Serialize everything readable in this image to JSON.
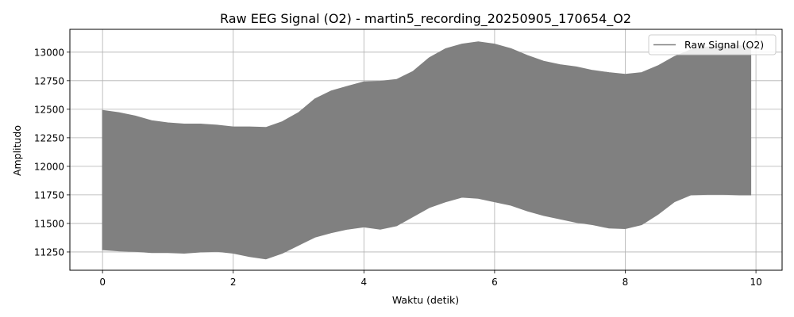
{
  "chart_data": {
    "type": "area",
    "title": "Raw EEG Signal (O2) - martin5_recording_20250905_170654_O2",
    "xlabel": "Waktu (detik)",
    "ylabel": "Amplitudo",
    "xlim": [
      -0.5,
      10.4
    ],
    "ylim": [
      11090,
      13200
    ],
    "x_ticks": [
      0,
      2,
      4,
      6,
      8,
      10
    ],
    "y_ticks": [
      11250,
      11500,
      11750,
      12000,
      12250,
      12500,
      12750,
      13000
    ],
    "grid": true,
    "legend_position": "top-right",
    "series": [
      {
        "name": "Raw Signal (O2)",
        "color": "#808080",
        "x": [
          0,
          0.25,
          0.5,
          0.75,
          1,
          1.25,
          1.5,
          1.75,
          2,
          2.25,
          2.5,
          2.75,
          3,
          3.25,
          3.5,
          3.75,
          4,
          4.25,
          4.5,
          4.75,
          5,
          5.25,
          5.5,
          5.75,
          6,
          6.25,
          6.5,
          6.75,
          7,
          7.25,
          7.5,
          7.75,
          8,
          8.25,
          8.5,
          8.75,
          9,
          9.25,
          9.5,
          9.75,
          9.92
        ],
        "upper": [
          12490,
          12470,
          12440,
          12400,
          12380,
          12370,
          12370,
          12360,
          12345,
          12345,
          12340,
          12390,
          12470,
          12590,
          12660,
          12700,
          12740,
          12745,
          12760,
          12830,
          12950,
          13030,
          13070,
          13090,
          13070,
          13030,
          12970,
          12920,
          12890,
          12870,
          12840,
          12820,
          12805,
          12820,
          12880,
          12960,
          13020,
          13045,
          13055,
          13055,
          13050
        ],
        "lower": [
          11270,
          11260,
          11255,
          11245,
          11245,
          11240,
          11250,
          11255,
          11240,
          11210,
          11190,
          11240,
          11310,
          11380,
          11420,
          11450,
          11470,
          11450,
          11480,
          11560,
          11640,
          11690,
          11730,
          11720,
          11690,
          11660,
          11610,
          11570,
          11540,
          11510,
          11490,
          11460,
          11455,
          11490,
          11580,
          11690,
          11750,
          11755,
          11755,
          11750,
          11750
        ]
      }
    ]
  }
}
